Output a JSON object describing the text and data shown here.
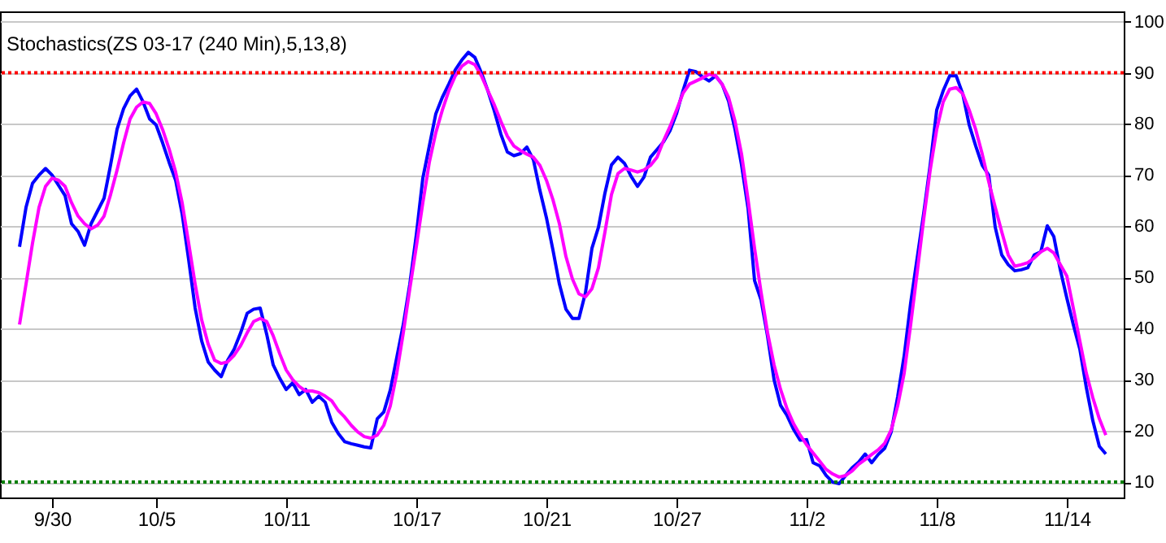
{
  "chart_data": {
    "type": "line",
    "title": "Stochastics(ZS 03-17 (240 Min),5,13,8)",
    "categories": [
      null,
      null,
      null,
      null,
      null,
      "9/30",
      null,
      null,
      null,
      null,
      null,
      null,
      null,
      null,
      null,
      null,
      null,
      null,
      null,
      null,
      null,
      "10/5",
      null,
      null,
      null,
      null,
      null,
      null,
      null,
      null,
      null,
      null,
      null,
      null,
      null,
      null,
      null,
      null,
      null,
      null,
      null,
      "10/11",
      null,
      null,
      null,
      null,
      null,
      null,
      null,
      null,
      null,
      null,
      null,
      null,
      null,
      null,
      null,
      null,
      null,
      null,
      null,
      "10/17",
      null,
      null,
      null,
      null,
      null,
      null,
      null,
      null,
      null,
      null,
      null,
      null,
      null,
      null,
      null,
      null,
      null,
      null,
      null,
      "10/21",
      null,
      null,
      null,
      null,
      null,
      null,
      null,
      null,
      null,
      null,
      null,
      null,
      null,
      null,
      null,
      null,
      null,
      null,
      null,
      "10/27",
      null,
      null,
      null,
      null,
      null,
      null,
      null,
      null,
      null,
      null,
      null,
      null,
      null,
      null,
      null,
      null,
      null,
      null,
      null,
      "11/2",
      null,
      null,
      null,
      null,
      null,
      null,
      null,
      null,
      null,
      null,
      null,
      null,
      null,
      null,
      null,
      null,
      null,
      null,
      null,
      "11/8",
      null,
      null,
      null,
      null,
      null,
      null,
      null,
      null,
      null,
      null,
      null,
      null,
      null,
      null,
      null,
      null,
      null,
      null,
      null,
      "11/14",
      null,
      null,
      null,
      null,
      null,
      null
    ],
    "series": [
      {
        "color": "#0000ff",
        "values": [
          56,
          63.7,
          68.4,
          70,
          71.3,
          70,
          68,
          66,
          60.5,
          59,
          56.3,
          60.5,
          63,
          65.5,
          72,
          79,
          83,
          85.5,
          86.8,
          84.3,
          81,
          79.8,
          76.3,
          72.5,
          69,
          62.4,
          53.5,
          44,
          37.6,
          33.5,
          31.9,
          30.6,
          33.8,
          36,
          39.2,
          43,
          43.8,
          44,
          38.9,
          32.9,
          30.3,
          28.1,
          29.4,
          27.1,
          28.1,
          25.6,
          26.8,
          25.6,
          21.7,
          19.5,
          17.9,
          17.5,
          17.2,
          16.9,
          16.7,
          22.4,
          23.7,
          28,
          34.4,
          40.8,
          48.7,
          58.3,
          69.4,
          75.7,
          82,
          85.2,
          87.8,
          90.6,
          92.5,
          94,
          93,
          90,
          86.5,
          82.5,
          78,
          74.5,
          73.8,
          74.2,
          75.5,
          73,
          67,
          61.7,
          55.4,
          48.7,
          43.8,
          42,
          42,
          47,
          55.7,
          59.8,
          66.5,
          72,
          73.5,
          72.3,
          69.8,
          67.8,
          69.6,
          73.5,
          75,
          76.5,
          78.7,
          82,
          86.5,
          90.5,
          90.2,
          89.2,
          88.4,
          89.4,
          87.8,
          84.5,
          78.9,
          72,
          63.5,
          49.4,
          45.6,
          38.5,
          30,
          25,
          23,
          20.3,
          18.2,
          18.3,
          13.8,
          13.2,
          11.3,
          10,
          9.7,
          11.3,
          12.8,
          13.9,
          15.5,
          13.8,
          15.4,
          16.6,
          19.8,
          26.7,
          34.7,
          45,
          53.8,
          62.5,
          72,
          82.7,
          86.5,
          89.4,
          89.4,
          85.9,
          79.8,
          75.7,
          71.9,
          70,
          59.8,
          54.4,
          52.5,
          51.3,
          51.5,
          51.9,
          54.4,
          55,
          60.1,
          58,
          51.5,
          46,
          40.8,
          36,
          28.5,
          22,
          17,
          15.5
        ]
      },
      {
        "color": "#ff00ff",
        "values": [
          40.8,
          48.7,
          56.7,
          63.7,
          67.8,
          69.4,
          69,
          67.8,
          64.6,
          62,
          60.5,
          59.5,
          60.2,
          62,
          66.2,
          71,
          76.3,
          81,
          83.3,
          84.3,
          84,
          82,
          78.9,
          75.1,
          70.6,
          64.6,
          56.7,
          48.7,
          41.7,
          37,
          33.8,
          33.2,
          33.5,
          34.8,
          36.7,
          39.2,
          41.4,
          42,
          41.4,
          38.6,
          35.1,
          31.9,
          30,
          28.7,
          27.8,
          27.8,
          27.5,
          26.8,
          25.9,
          24,
          22.7,
          21.1,
          19.8,
          18.9,
          18.6,
          19.2,
          21.1,
          24.9,
          31.3,
          39.2,
          47.8,
          56,
          64.6,
          72.5,
          78.3,
          82.7,
          86.5,
          89.4,
          91.3,
          92.2,
          91.6,
          89.4,
          86.5,
          83.7,
          80.5,
          77.6,
          75.7,
          74.8,
          74.1,
          73.5,
          71.9,
          69,
          65.2,
          60.5,
          54.1,
          49.7,
          46.8,
          46.2,
          47.8,
          51.9,
          58.9,
          66.2,
          70.3,
          71.3,
          71,
          70.6,
          71,
          71.9,
          73.5,
          76.7,
          79.5,
          82.7,
          86,
          87.8,
          88.4,
          89,
          89.7,
          89.4,
          87.8,
          85.2,
          80.5,
          74.1,
          65.2,
          55.7,
          47.1,
          39.2,
          32.9,
          28.1,
          24.3,
          21.4,
          19.2,
          17.3,
          15.7,
          14.1,
          12.5,
          11.6,
          11,
          11.3,
          12.2,
          13.5,
          14.4,
          15.4,
          16.3,
          17.6,
          20.2,
          24.9,
          31.3,
          40.8,
          51,
          61.4,
          71,
          78.9,
          84.3,
          86.8,
          87.1,
          85.9,
          82.7,
          78.9,
          74.1,
          68.7,
          63.7,
          58.9,
          54.4,
          52.2,
          52.5,
          52.9,
          53.8,
          55,
          55.7,
          54.8,
          52.5,
          50.3,
          44,
          37.6,
          31.3,
          26.5,
          22.4,
          19.2
        ]
      }
    ],
    "ylim": [
      7,
      102
    ],
    "yticks": [
      10,
      20,
      30,
      40,
      50,
      60,
      70,
      80,
      90,
      100
    ],
    "grid": "y",
    "ref_lines": [
      {
        "axis": "y",
        "value": 90,
        "color": "#ff0000",
        "line_style": "dotted"
      },
      {
        "axis": "y",
        "value": 10,
        "color": "#008000",
        "line_style": "dotted"
      }
    ]
  }
}
